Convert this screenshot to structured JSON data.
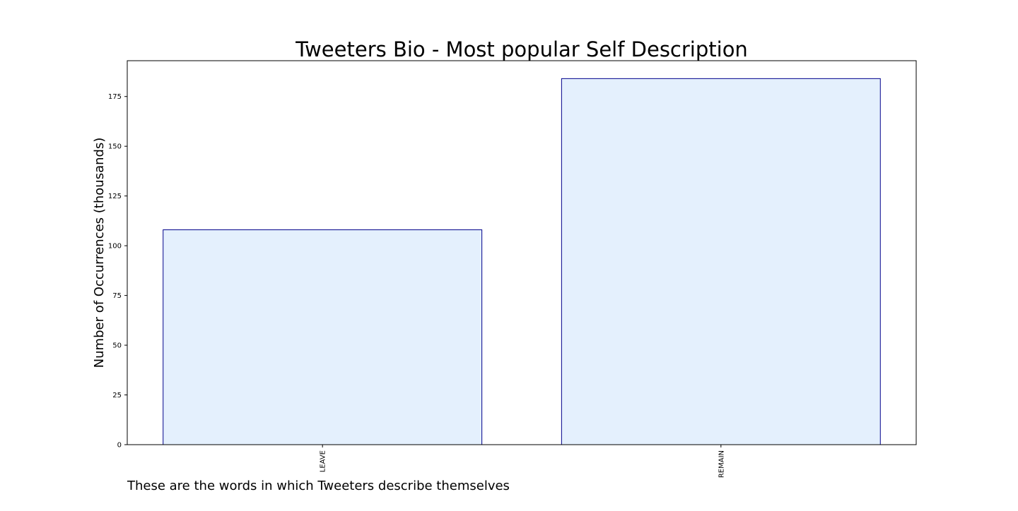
{
  "chart_data": {
    "type": "bar",
    "title": "Tweeters Bio - Most popular Self Description",
    "ylabel": "Number of Occurrences (thousands)",
    "xlabel": "",
    "caption": "These are the words in which Tweeters describe themselves",
    "categories": [
      "LEAVE",
      "REMAIN"
    ],
    "values": [
      108,
      184
    ],
    "ylim": [
      0,
      193
    ],
    "yticks": [
      0,
      25,
      50,
      75,
      100,
      125,
      150,
      175
    ],
    "grid": false,
    "legend": "none",
    "bar_fill_color": "#e4f0fd",
    "bar_edge_color": "#00008b"
  }
}
